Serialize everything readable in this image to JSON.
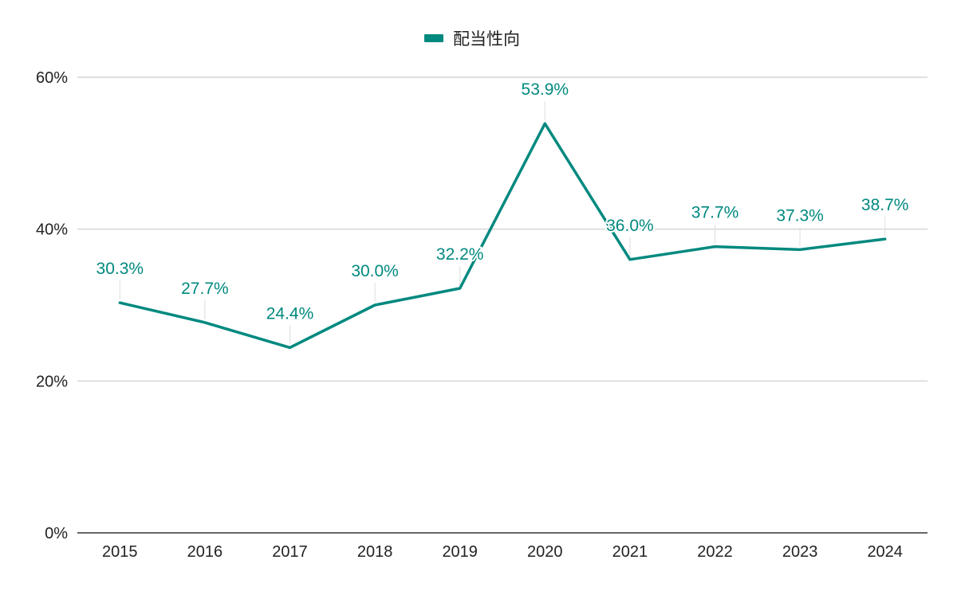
{
  "chart_data": {
    "type": "line",
    "title": "",
    "xlabel": "",
    "ylabel": "",
    "categories": [
      "2015",
      "2016",
      "2017",
      "2018",
      "2019",
      "2020",
      "2021",
      "2022",
      "2023",
      "2024"
    ],
    "series": [
      {
        "name": "配当性向",
        "values": [
          30.3,
          27.7,
          24.4,
          30.0,
          32.2,
          53.9,
          36.0,
          37.7,
          37.3,
          38.7
        ],
        "labels": [
          "30.3%",
          "27.7%",
          "24.4%",
          "30.0%",
          "32.2%",
          "53.9%",
          "36.0%",
          "37.7%",
          "37.3%",
          "38.7%"
        ],
        "color": "#00897f"
      }
    ],
    "ylim": [
      0,
      60
    ],
    "y_ticks": [
      0,
      20,
      40,
      60
    ],
    "y_tick_labels": [
      "0%",
      "20%",
      "40%",
      "60%"
    ],
    "grid": true,
    "legend_position": "top-center"
  }
}
